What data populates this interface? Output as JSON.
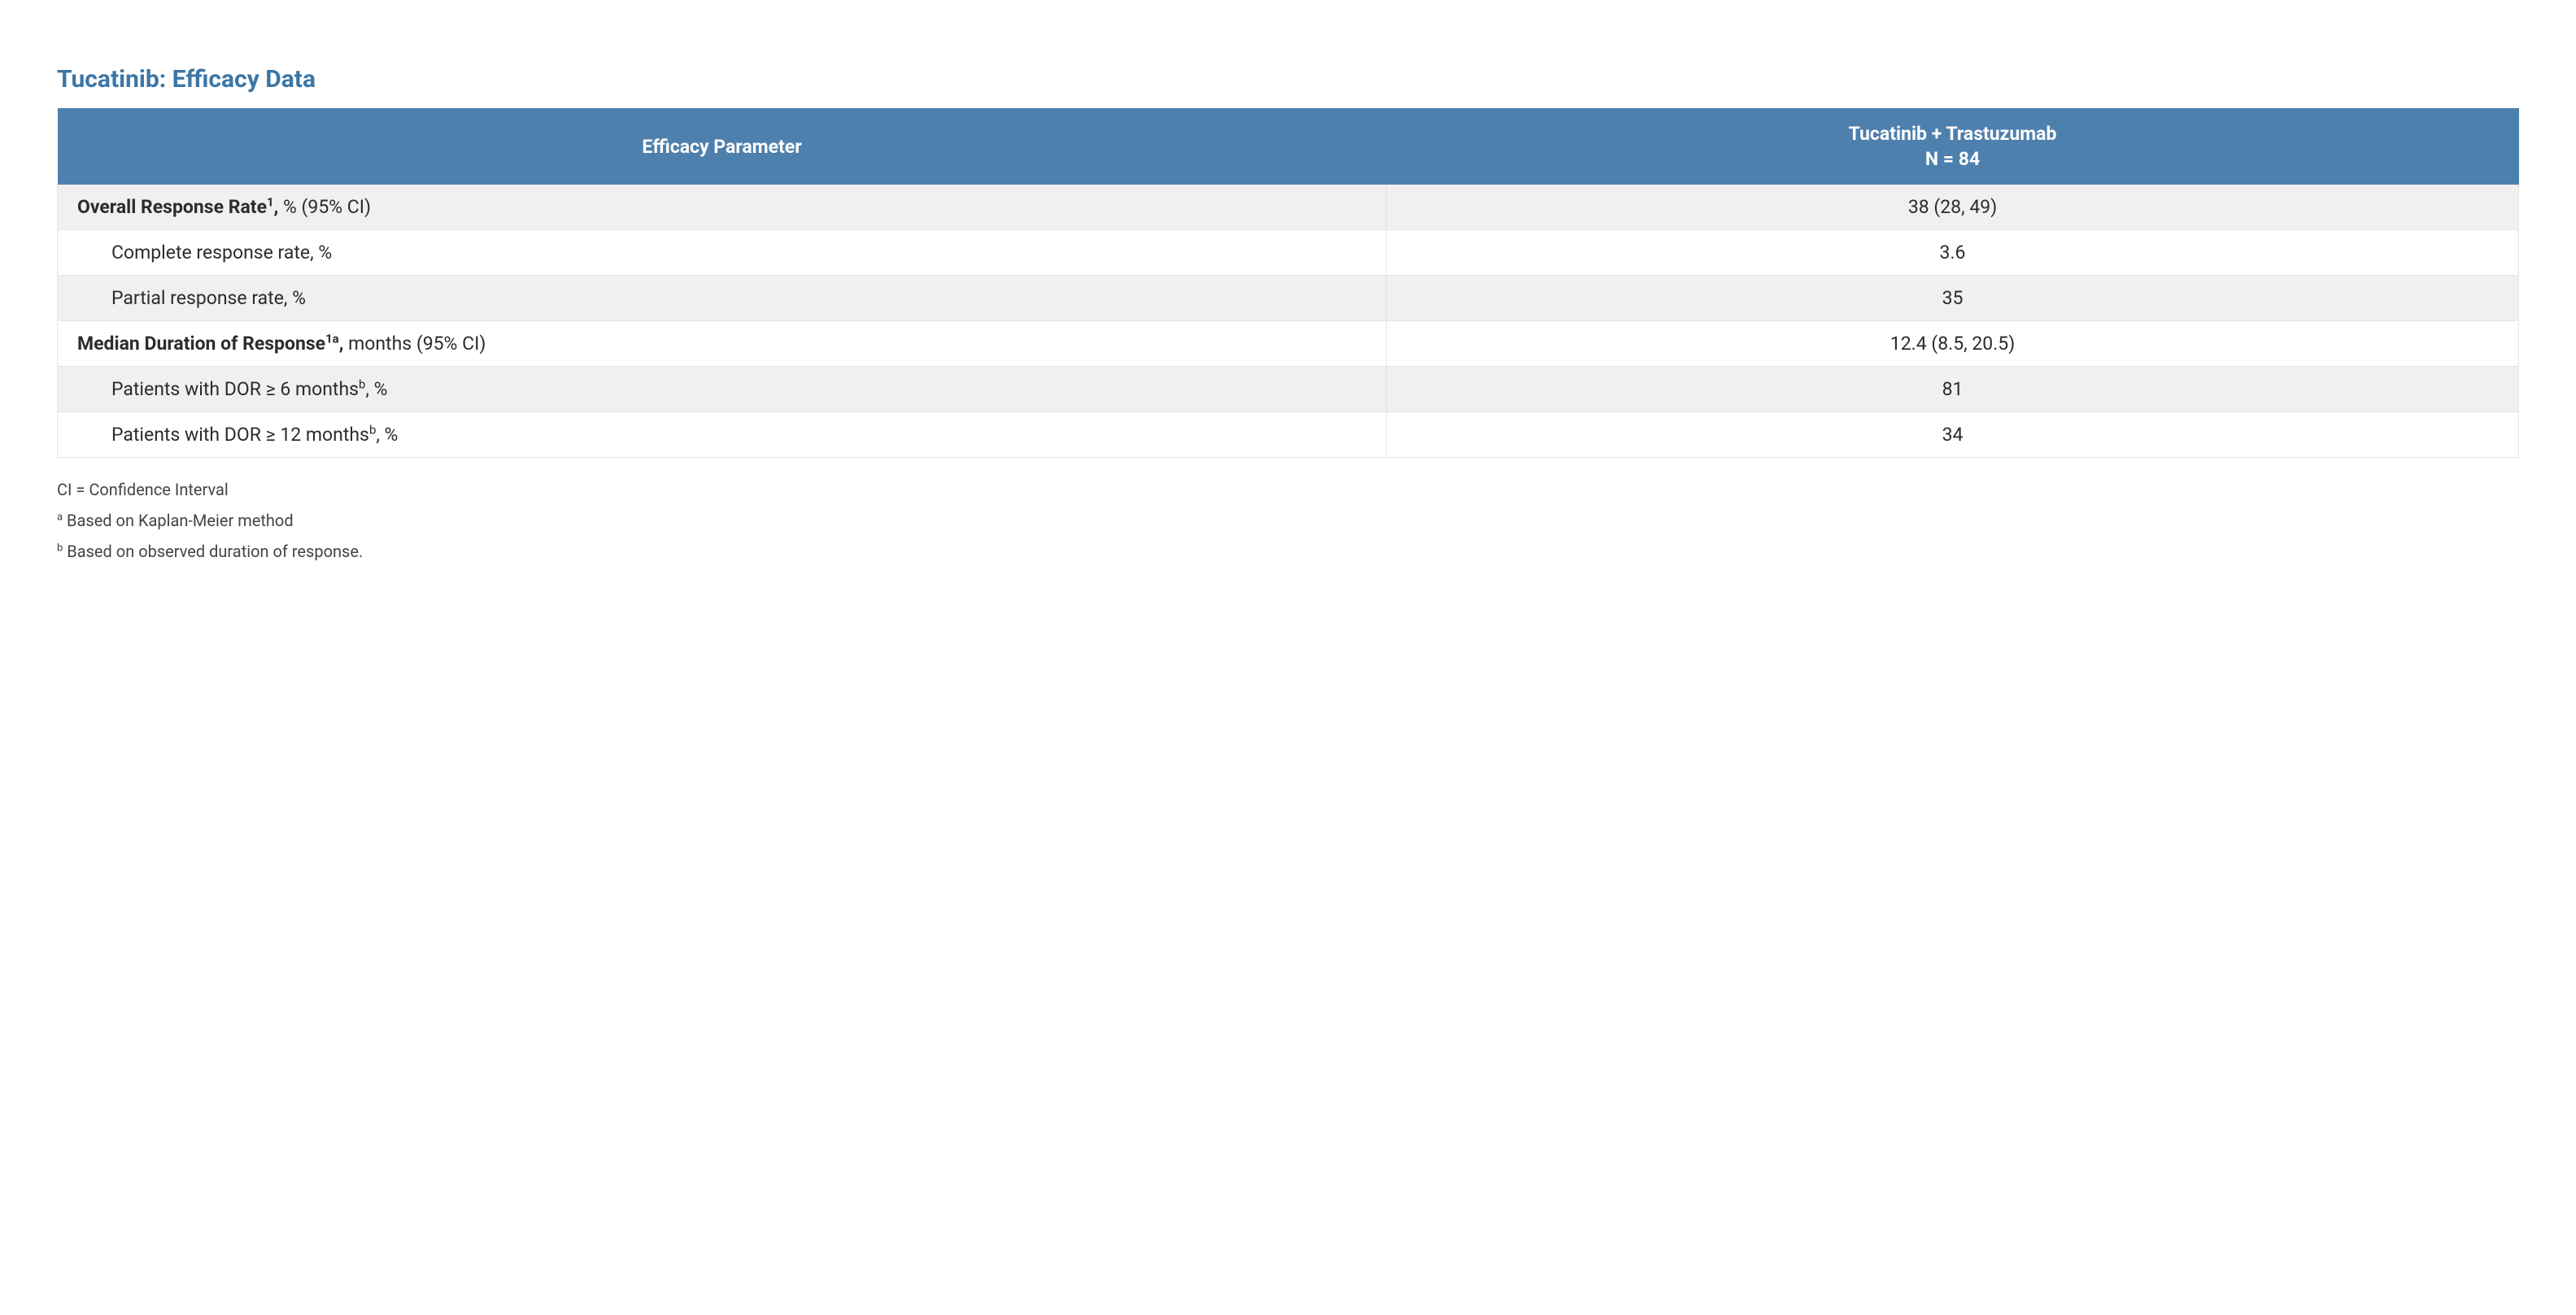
{
  "title": {
    "text": "Tucatinib: Efficacy Data",
    "color": "#3b76a6"
  },
  "table": {
    "header_bg": "#4e80ad",
    "row_alt_bg": "#f1efef",
    "row_bg": "#ffffff",
    "col1_width_pct": 54,
    "headers": {
      "param": "Efficacy Parameter",
      "arm_line1": "Tucatinib + Trastuzumab",
      "arm_line2": "N = 84"
    },
    "rows": [
      {
        "label_pre_bold": "Overall Response Rate",
        "label_sup": "1",
        "label_post": " % (95% CI)",
        "indent": false,
        "value": "38 (28, 49)",
        "shaded": true
      },
      {
        "label_pre_bold": "",
        "label_sup": "",
        "label_post": "Complete response rate, %",
        "indent": true,
        "value": "3.6",
        "shaded": false
      },
      {
        "label_pre_bold": "",
        "label_sup": "",
        "label_post": "Partial response rate, %",
        "indent": true,
        "value": "35",
        "shaded": true
      },
      {
        "label_pre_bold": "Median Duration of Response",
        "label_sup": "1a",
        "label_post": " months (95% CI)",
        "indent": false,
        "value": "12.4 (8.5, 20.5)",
        "shaded": false
      },
      {
        "label_pre_bold": "",
        "label_sup": "b",
        "label_post": ", %",
        "indent": true,
        "label_plain_pre": "Patients with DOR ≥ 6 months",
        "value": "81",
        "shaded": true
      },
      {
        "label_pre_bold": "",
        "label_sup": "b",
        "label_post": ", %",
        "indent": true,
        "label_plain_pre": "Patients with DOR ≥ 12 months",
        "value": "34",
        "shaded": false
      }
    ]
  },
  "footnotes": {
    "line1": "CI = Confidence Interval",
    "line2_sup": "a",
    "line2_text": " Based on Kaplan-Meier method",
    "line3_sup": "b",
    "line3_text": " Based on observed duration of response."
  }
}
